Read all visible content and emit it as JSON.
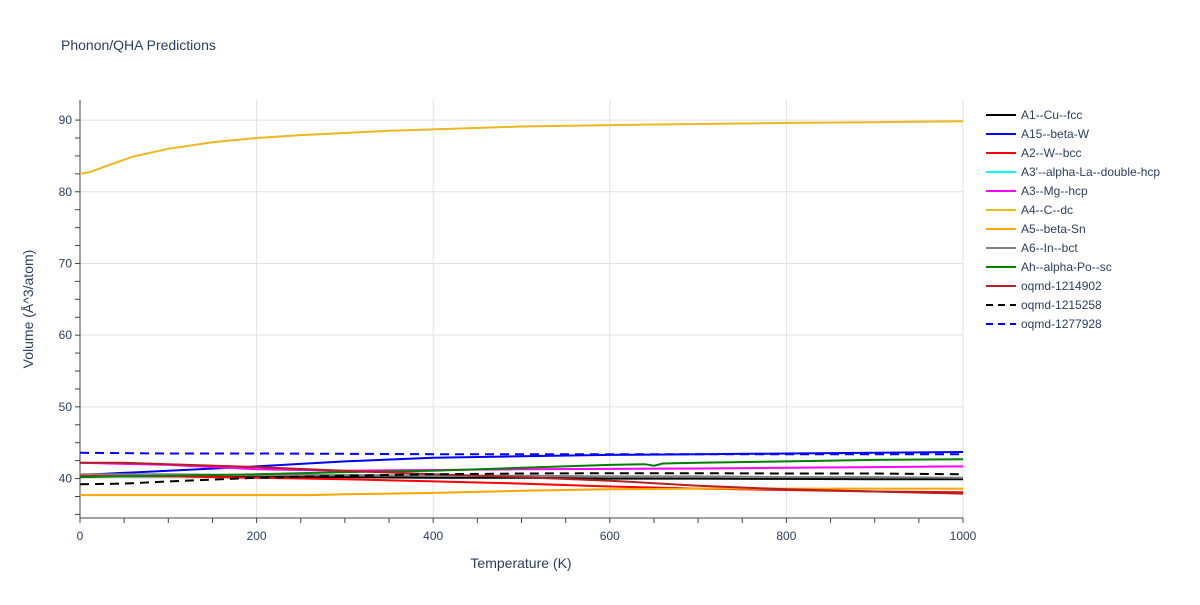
{
  "chart_data": {
    "type": "line",
    "title": "Phonon/QHA Predictions",
    "xlabel": "Temperature (K)",
    "ylabel": "Volume (Å^3/atom)",
    "xlim": [
      0,
      1000
    ],
    "ylim": [
      34.5,
      92.8
    ],
    "x_ticks": [
      0,
      200,
      400,
      600,
      800,
      1000
    ],
    "y_ticks": [
      40,
      50,
      60,
      70,
      80,
      90
    ],
    "grid": true,
    "legend_position": "right",
    "series": [
      {
        "name": "A1--Cu--fcc",
        "color": "#000000",
        "dash": "solid",
        "x": [
          0,
          100,
          200,
          300,
          400,
          500,
          600,
          700,
          800,
          900,
          1000
        ],
        "y": [
          40.3,
          40.3,
          40.2,
          40.2,
          40.1,
          40.1,
          40.0,
          40.0,
          39.95,
          39.9,
          39.9
        ]
      },
      {
        "name": "A15--beta-W",
        "color": "#0000ff",
        "dash": "solid",
        "x": [
          0,
          100,
          200,
          300,
          400,
          500,
          600,
          700,
          800,
          900,
          1000
        ],
        "y": [
          40.5,
          41.1,
          41.7,
          42.4,
          42.9,
          43.1,
          43.3,
          43.4,
          43.5,
          43.6,
          43.7
        ]
      },
      {
        "name": "A2--W--bcc",
        "color": "#ff0000",
        "dash": "solid",
        "x": [
          0,
          100,
          200,
          300,
          400,
          500,
          600,
          700,
          800,
          900,
          1000
        ],
        "y": [
          40.4,
          40.3,
          40.1,
          39.9,
          39.6,
          39.3,
          38.9,
          38.6,
          38.4,
          38.2,
          38.1
        ]
      },
      {
        "name": "A3'--alpha-La--double-hcp",
        "color": "#00ffff",
        "dash": "solid",
        "x": [],
        "y": []
      },
      {
        "name": "A3--Mg--hcp",
        "color": "#ff00ff",
        "dash": "solid",
        "x": [
          0,
          100,
          200,
          300,
          400,
          500,
          600,
          700,
          800,
          900,
          1000
        ],
        "y": [
          42.2,
          41.9,
          41.3,
          41.1,
          41.2,
          41.3,
          41.35,
          41.4,
          41.5,
          41.6,
          41.7
        ]
      },
      {
        "name": "A4--C--dc",
        "color": "#ebb821",
        "dash": "solid",
        "x": [
          0,
          10,
          30,
          60,
          100,
          150,
          200,
          250,
          300,
          350,
          400,
          500,
          600,
          700,
          800,
          900,
          1000
        ],
        "y": [
          82.5,
          82.7,
          83.6,
          84.9,
          86.0,
          86.9,
          87.5,
          87.9,
          88.2,
          88.5,
          88.7,
          89.1,
          89.3,
          89.45,
          89.6,
          89.7,
          89.85
        ]
      },
      {
        "name": "A5--beta-Sn",
        "color": "#ffa500",
        "dash": "solid",
        "x": [
          0,
          100,
          200,
          260,
          300,
          400,
          500,
          600,
          700,
          800,
          900,
          1000
        ],
        "y": [
          37.7,
          37.7,
          37.7,
          37.7,
          37.8,
          38.0,
          38.3,
          38.5,
          38.6,
          38.6,
          38.6,
          38.6
        ]
      },
      {
        "name": "A6--In--bct",
        "color": "#808080",
        "dash": "solid",
        "x": [
          0,
          100,
          200,
          300,
          400,
          500,
          600,
          700,
          800,
          900,
          1000
        ],
        "y": [
          40.6,
          40.6,
          40.5,
          40.5,
          40.4,
          40.4,
          40.3,
          40.3,
          40.2,
          40.2,
          40.1
        ]
      },
      {
        "name": "Ah--alpha-Po--sc",
        "color": "#008000",
        "dash": "solid",
        "x": [
          0,
          100,
          200,
          300,
          400,
          500,
          600,
          640,
          650,
          660,
          700,
          800,
          900,
          1000
        ],
        "y": [
          40.2,
          40.4,
          40.6,
          40.9,
          41.1,
          41.5,
          41.9,
          42.0,
          41.8,
          42.1,
          42.2,
          42.4,
          42.6,
          42.7
        ]
      },
      {
        "name": "oqmd-1214902",
        "color": "#b22222",
        "dash": "solid",
        "x": [
          0,
          50,
          100,
          200,
          300,
          400,
          500,
          600,
          700,
          800,
          900,
          1000
        ],
        "y": [
          42.2,
          42.2,
          42.0,
          41.6,
          41.1,
          40.6,
          40.2,
          39.7,
          39.0,
          38.5,
          38.2,
          37.9
        ]
      },
      {
        "name": "oqmd-1215258",
        "color": "#000000",
        "dash": "dash",
        "x": [
          0,
          50,
          100,
          200,
          300,
          400,
          500,
          600,
          700,
          800,
          900,
          1000
        ],
        "y": [
          39.2,
          39.3,
          39.6,
          40.1,
          40.4,
          40.6,
          40.7,
          40.75,
          40.75,
          40.7,
          40.7,
          40.6
        ]
      },
      {
        "name": "oqmd-1277928",
        "color": "#0000ff",
        "dash": "dash",
        "x": [
          0,
          100,
          200,
          300,
          400,
          500,
          600,
          700,
          800,
          900,
          1000
        ],
        "y": [
          43.6,
          43.5,
          43.5,
          43.45,
          43.4,
          43.4,
          43.4,
          43.4,
          43.4,
          43.4,
          43.4
        ]
      }
    ]
  }
}
